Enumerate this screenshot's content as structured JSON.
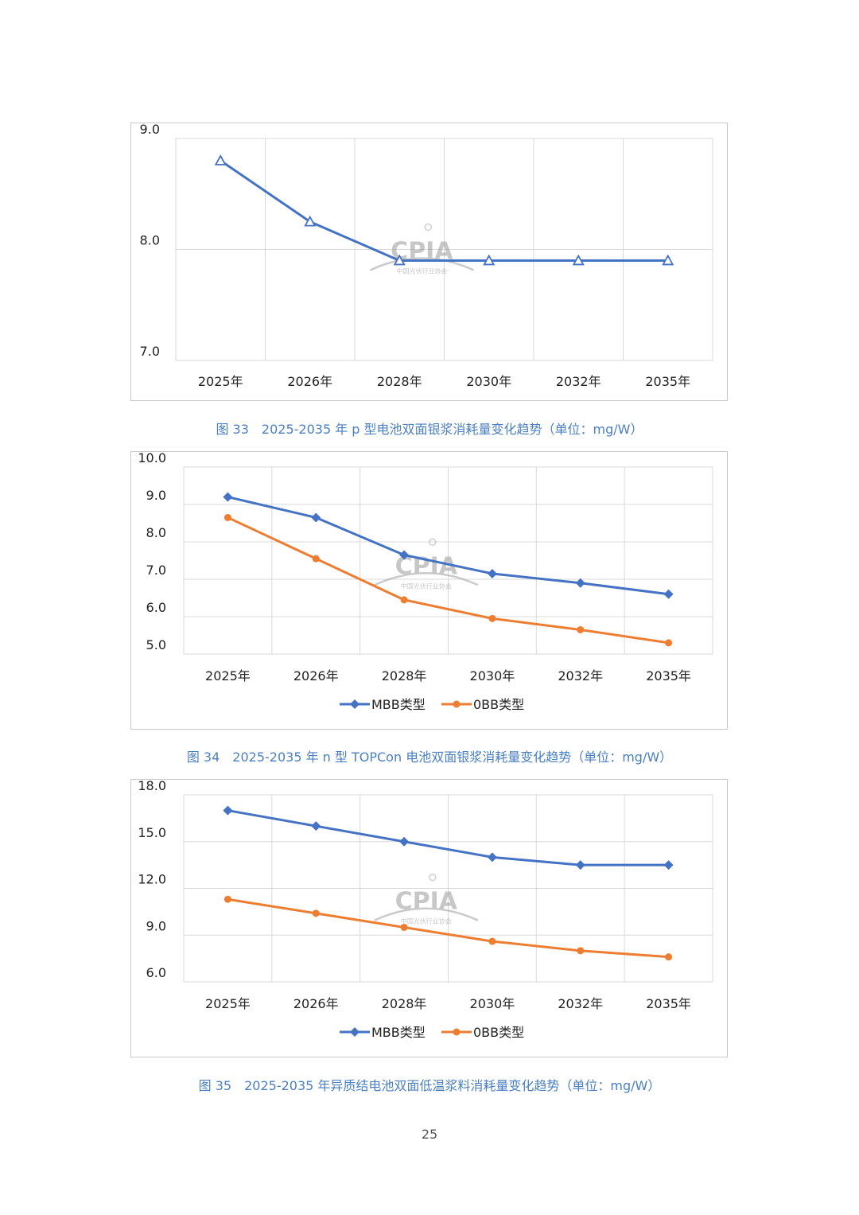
{
  "watermark": {
    "brand": "CPIA",
    "subtitle": "中国光伏行业协会"
  },
  "colors": {
    "mbb": "#4472c4",
    "obb": "#ed7d31",
    "caption": "#4a7fc1",
    "grid": "#d9d9d9"
  },
  "chart_data": [
    {
      "type": "line",
      "categories": [
        "2025年",
        "2026年",
        "2028年",
        "2030年",
        "2032年",
        "2035年"
      ],
      "series": [
        {
          "name": "",
          "values": [
            8.8,
            8.25,
            7.9,
            7.9,
            7.9,
            7.9
          ],
          "marker": "triangle-open",
          "color": "#4472c4"
        }
      ],
      "ylim": [
        7.0,
        9.0
      ],
      "yticks": [
        "7.0",
        "8.0",
        "9.0"
      ],
      "legend": false
    },
    {
      "type": "line",
      "categories": [
        "2025年",
        "2026年",
        "2028年",
        "2030年",
        "2032年",
        "2035年"
      ],
      "series": [
        {
          "name": "MBB类型",
          "values": [
            9.2,
            8.65,
            7.65,
            7.15,
            6.9,
            6.6
          ],
          "marker": "diamond",
          "color": "#4472c4"
        },
        {
          "name": "0BB类型",
          "values": [
            8.65,
            7.55,
            6.45,
            5.95,
            5.65,
            5.3
          ],
          "marker": "circle",
          "color": "#ed7d31"
        }
      ],
      "ylim": [
        5.0,
        10.0
      ],
      "yticks": [
        "5.0",
        "6.0",
        "7.0",
        "8.0",
        "9.0",
        "10.0"
      ],
      "legend": "bottom-center"
    },
    {
      "type": "line",
      "categories": [
        "2025年",
        "2026年",
        "2028年",
        "2030年",
        "2032年",
        "2035年"
      ],
      "series": [
        {
          "name": "MBB类型",
          "values": [
            17.0,
            16.0,
            15.0,
            14.0,
            13.5,
            13.5
          ],
          "marker": "diamond",
          "color": "#4472c4"
        },
        {
          "name": "0BB类型",
          "values": [
            11.3,
            10.4,
            9.5,
            8.6,
            8.0,
            7.6
          ],
          "marker": "circle",
          "color": "#ed7d31"
        }
      ],
      "ylim": [
        6.0,
        18.0
      ],
      "yticks": [
        "6.0",
        "9.0",
        "12.0",
        "15.0",
        "18.0"
      ],
      "legend": "bottom-center"
    }
  ],
  "captions": [
    {
      "num": "图 33",
      "text": "2025-2035 年 p 型电池双面银浆消耗量变化趋势（单位：mg/W）"
    },
    {
      "num": "图 34",
      "text": "2025-2035 年 n 型 TOPCon 电池双面银浆消耗量变化趋势（单位：mg/W）"
    },
    {
      "num": "图 35",
      "text": "2025-2035 年异质结电池双面低温浆料消耗量变化趋势（单位：mg/W）"
    }
  ],
  "page_number": "25"
}
